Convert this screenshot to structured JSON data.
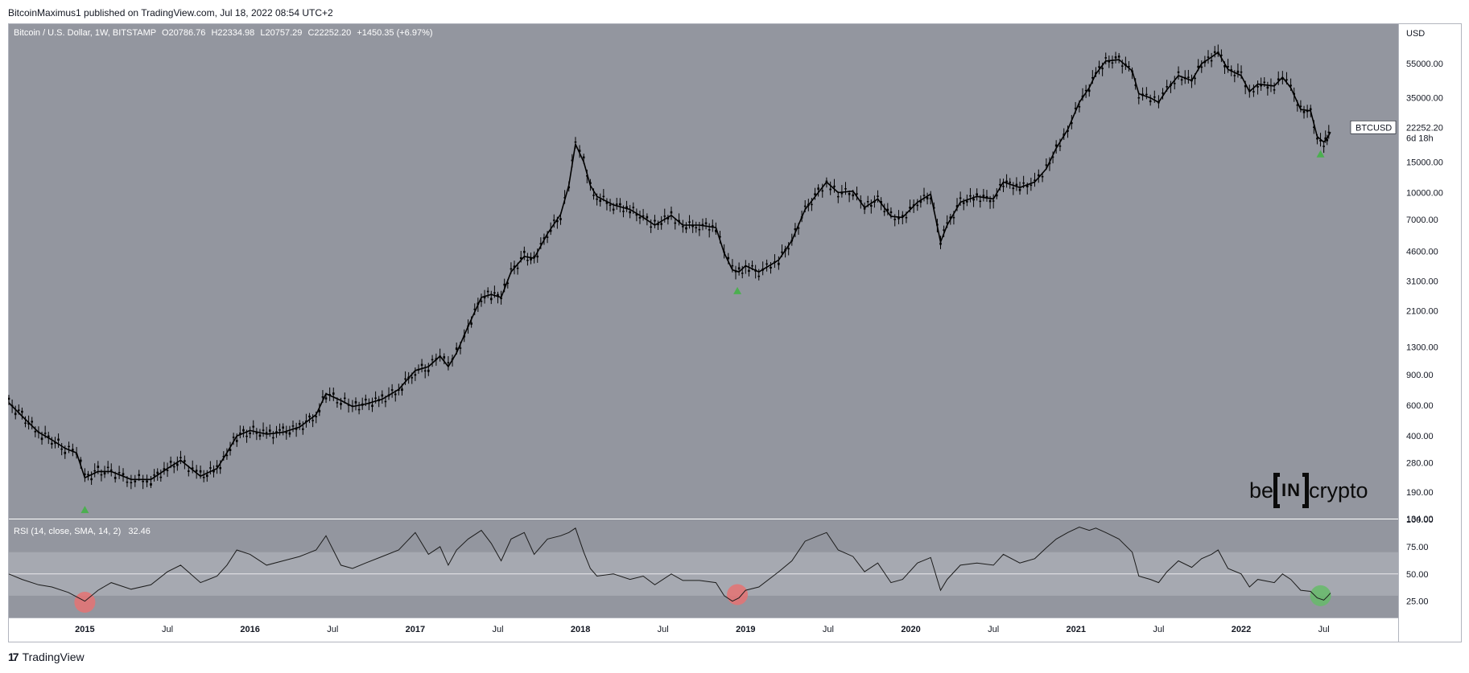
{
  "publisher": "BitcoinMaximus1 published on TradingView.com, Jul 18, 2022 08:54 UTC+2",
  "footer": {
    "brand": "TradingView",
    "logo_mark": "17"
  },
  "watermark": {
    "left": "be",
    "middle": "IN",
    "right": "crypto"
  },
  "colors": {
    "chart_bg": "#93969f",
    "rsi_band": "#a6a9b1",
    "candle": "#000000",
    "arrow_green": "#4caf50",
    "circle_red": "#e57373",
    "circle_green": "#66bb6a"
  },
  "chart_data": [
    {
      "type": "candlestick",
      "title": "Bitcoin / U.S. Dollar, 1W, BITSTAMP",
      "ohlc": {
        "o_label": "O",
        "o": "20786.76",
        "h_label": "H",
        "h": "22334.98",
        "l_label": "L",
        "l": "20757.29",
        "c_label": "C",
        "c": "22252.20",
        "change": "+1450.35 (+6.97%)"
      },
      "y_scale": "log",
      "ylim": [
        134,
        80000
      ],
      "y_unit": "USD",
      "y_ticks": [
        55000,
        35000,
        15000,
        10000,
        7000,
        4600,
        3100,
        2100,
        1300,
        900,
        600,
        400,
        280,
        190,
        134
      ],
      "y_tick_labels": [
        "55000.00",
        "35000.00",
        "15000.00",
        "10000.00",
        "7000.00",
        "4600.00",
        "3100.00",
        "2100.00",
        "1300.00",
        "900.00",
        "600.00",
        "400.00",
        "280.00",
        "190.00",
        "134.00"
      ],
      "x_ticks": [
        "2015",
        "Jul",
        "2016",
        "Jul",
        "2017",
        "Jul",
        "2018",
        "Jul",
        "2019",
        "Jul",
        "2020",
        "Jul",
        "2021",
        "Jul",
        "2022",
        "Jul"
      ],
      "x_tick_years": [
        2015.0,
        2015.5,
        2016.0,
        2016.5,
        2017.0,
        2017.5,
        2018.0,
        2018.5,
        2019.0,
        2019.5,
        2020.0,
        2020.5,
        2021.0,
        2021.5,
        2022.0,
        2022.5
      ],
      "xlim": [
        2014.54,
        2022.95
      ],
      "price_path": [
        [
          2014.54,
          620
        ],
        [
          2014.62,
          520
        ],
        [
          2014.72,
          420
        ],
        [
          2014.8,
          380
        ],
        [
          2014.88,
          340
        ],
        [
          2014.95,
          320
        ],
        [
          2015.0,
          230
        ],
        [
          2015.08,
          250
        ],
        [
          2015.16,
          250
        ],
        [
          2015.28,
          225
        ],
        [
          2015.4,
          225
        ],
        [
          2015.5,
          260
        ],
        [
          2015.58,
          290
        ],
        [
          2015.7,
          235
        ],
        [
          2015.8,
          260
        ],
        [
          2015.86,
          320
        ],
        [
          2015.92,
          400
        ],
        [
          2016.0,
          430
        ],
        [
          2016.1,
          410
        ],
        [
          2016.2,
          420
        ],
        [
          2016.3,
          450
        ],
        [
          2016.4,
          530
        ],
        [
          2016.46,
          700
        ],
        [
          2016.55,
          640
        ],
        [
          2016.62,
          590
        ],
        [
          2016.7,
          610
        ],
        [
          2016.8,
          650
        ],
        [
          2016.9,
          740
        ],
        [
          2017.0,
          950
        ],
        [
          2017.08,
          1000
        ],
        [
          2017.15,
          1150
        ],
        [
          2017.2,
          1000
        ],
        [
          2017.25,
          1200
        ],
        [
          2017.32,
          1700
        ],
        [
          2017.4,
          2500
        ],
        [
          2017.46,
          2600
        ],
        [
          2017.52,
          2500
        ],
        [
          2017.58,
          3500
        ],
        [
          2017.66,
          4300
        ],
        [
          2017.72,
          4200
        ],
        [
          2017.8,
          5800
        ],
        [
          2017.88,
          7500
        ],
        [
          2017.93,
          11000
        ],
        [
          2017.97,
          19000
        ],
        [
          2018.02,
          15000
        ],
        [
          2018.06,
          11000
        ],
        [
          2018.1,
          9500
        ],
        [
          2018.2,
          8500
        ],
        [
          2018.3,
          8000
        ],
        [
          2018.38,
          7200
        ],
        [
          2018.45,
          6500
        ],
        [
          2018.55,
          7400
        ],
        [
          2018.62,
          6500
        ],
        [
          2018.72,
          6500
        ],
        [
          2018.82,
          6300
        ],
        [
          2018.87,
          4500
        ],
        [
          2018.92,
          3600
        ],
        [
          2018.96,
          3500
        ],
        [
          2019.0,
          3800
        ],
        [
          2019.08,
          3500
        ],
        [
          2019.2,
          4100
        ],
        [
          2019.28,
          5300
        ],
        [
          2019.36,
          8000
        ],
        [
          2019.44,
          10000
        ],
        [
          2019.49,
          11500
        ],
        [
          2019.56,
          10000
        ],
        [
          2019.65,
          10200
        ],
        [
          2019.72,
          8200
        ],
        [
          2019.8,
          9200
        ],
        [
          2019.88,
          7300
        ],
        [
          2019.95,
          7200
        ],
        [
          2020.04,
          8800
        ],
        [
          2020.12,
          9800
        ],
        [
          2020.18,
          5200
        ],
        [
          2020.22,
          6500
        ],
        [
          2020.3,
          8800
        ],
        [
          2020.4,
          9500
        ],
        [
          2020.5,
          9200
        ],
        [
          2020.56,
          11500
        ],
        [
          2020.66,
          10700
        ],
        [
          2020.75,
          11500
        ],
        [
          2020.82,
          13700
        ],
        [
          2020.88,
          18000
        ],
        [
          2020.95,
          23000
        ],
        [
          2021.02,
          33000
        ],
        [
          2021.08,
          40000
        ],
        [
          2021.12,
          48000
        ],
        [
          2021.18,
          57000
        ],
        [
          2021.26,
          58000
        ],
        [
          2021.34,
          50000
        ],
        [
          2021.38,
          37000
        ],
        [
          2021.45,
          35000
        ],
        [
          2021.5,
          33000
        ],
        [
          2021.55,
          39000
        ],
        [
          2021.62,
          47000
        ],
        [
          2021.7,
          44000
        ],
        [
          2021.76,
          55000
        ],
        [
          2021.82,
          60000
        ],
        [
          2021.86,
          64000
        ],
        [
          2021.92,
          51000
        ],
        [
          2022.0,
          47000
        ],
        [
          2022.05,
          38000
        ],
        [
          2022.1,
          42000
        ],
        [
          2022.2,
          41000
        ],
        [
          2022.25,
          46000
        ],
        [
          2022.3,
          40000
        ],
        [
          2022.36,
          30000
        ],
        [
          2022.42,
          29500
        ],
        [
          2022.46,
          21000
        ],
        [
          2022.5,
          19500
        ],
        [
          2022.52,
          20500
        ],
        [
          2022.54,
          22252
        ]
      ],
      "arrows_up": [
        {
          "x": 2015.0,
          "y": 152
        },
        {
          "x": 2018.95,
          "y": 2750
        },
        {
          "x": 2022.48,
          "y": 16800
        }
      ],
      "last_price_label": {
        "symbol": "BTCUSD",
        "price": "22252.20",
        "countdown": "6d 18h"
      }
    },
    {
      "type": "line",
      "title": "RSI (14, close, SMA, 14, 2)",
      "last_value": "32.46",
      "ylim": [
        10,
        100
      ],
      "y_ticks": [
        100,
        75,
        50,
        25
      ],
      "y_tick_labels": [
        "100.00",
        "75.00",
        "50.00",
        "25.00"
      ],
      "band": [
        30,
        70
      ],
      "midline": 50,
      "series": [
        [
          2014.54,
          50
        ],
        [
          2014.62,
          45
        ],
        [
          2014.72,
          40
        ],
        [
          2014.8,
          38
        ],
        [
          2014.9,
          33
        ],
        [
          2015.0,
          25
        ],
        [
          2015.08,
          35
        ],
        [
          2015.16,
          42
        ],
        [
          2015.28,
          36
        ],
        [
          2015.4,
          40
        ],
        [
          2015.5,
          52
        ],
        [
          2015.58,
          58
        ],
        [
          2015.7,
          42
        ],
        [
          2015.8,
          48
        ],
        [
          2015.86,
          58
        ],
        [
          2015.92,
          72
        ],
        [
          2016.0,
          68
        ],
        [
          2016.1,
          58
        ],
        [
          2016.2,
          62
        ],
        [
          2016.3,
          66
        ],
        [
          2016.4,
          72
        ],
        [
          2016.46,
          85
        ],
        [
          2016.55,
          58
        ],
        [
          2016.62,
          55
        ],
        [
          2016.7,
          60
        ],
        [
          2016.8,
          66
        ],
        [
          2016.9,
          72
        ],
        [
          2017.0,
          88
        ],
        [
          2017.08,
          68
        ],
        [
          2017.15,
          75
        ],
        [
          2017.2,
          58
        ],
        [
          2017.25,
          72
        ],
        [
          2017.32,
          82
        ],
        [
          2017.4,
          90
        ],
        [
          2017.46,
          78
        ],
        [
          2017.52,
          62
        ],
        [
          2017.58,
          82
        ],
        [
          2017.66,
          88
        ],
        [
          2017.72,
          68
        ],
        [
          2017.8,
          82
        ],
        [
          2017.88,
          85
        ],
        [
          2017.93,
          88
        ],
        [
          2017.97,
          92
        ],
        [
          2018.02,
          70
        ],
        [
          2018.06,
          55
        ],
        [
          2018.1,
          48
        ],
        [
          2018.2,
          50
        ],
        [
          2018.3,
          45
        ],
        [
          2018.38,
          48
        ],
        [
          2018.45,
          40
        ],
        [
          2018.55,
          50
        ],
        [
          2018.62,
          44
        ],
        [
          2018.72,
          44
        ],
        [
          2018.82,
          42
        ],
        [
          2018.87,
          30
        ],
        [
          2018.92,
          25
        ],
        [
          2018.96,
          28
        ],
        [
          2019.0,
          35
        ],
        [
          2019.08,
          38
        ],
        [
          2019.2,
          52
        ],
        [
          2019.28,
          62
        ],
        [
          2019.36,
          80
        ],
        [
          2019.44,
          85
        ],
        [
          2019.49,
          88
        ],
        [
          2019.56,
          72
        ],
        [
          2019.65,
          66
        ],
        [
          2019.72,
          52
        ],
        [
          2019.8,
          60
        ],
        [
          2019.88,
          42
        ],
        [
          2019.95,
          45
        ],
        [
          2020.04,
          60
        ],
        [
          2020.12,
          65
        ],
        [
          2020.18,
          35
        ],
        [
          2020.22,
          45
        ],
        [
          2020.3,
          58
        ],
        [
          2020.4,
          60
        ],
        [
          2020.5,
          58
        ],
        [
          2020.56,
          68
        ],
        [
          2020.66,
          60
        ],
        [
          2020.75,
          64
        ],
        [
          2020.82,
          74
        ],
        [
          2020.88,
          82
        ],
        [
          2020.95,
          88
        ],
        [
          2021.02,
          93
        ],
        [
          2021.08,
          90
        ],
        [
          2021.12,
          92
        ],
        [
          2021.18,
          88
        ],
        [
          2021.26,
          82
        ],
        [
          2021.34,
          70
        ],
        [
          2021.38,
          48
        ],
        [
          2021.45,
          45
        ],
        [
          2021.5,
          42
        ],
        [
          2021.55,
          52
        ],
        [
          2021.62,
          62
        ],
        [
          2021.7,
          56
        ],
        [
          2021.76,
          64
        ],
        [
          2021.82,
          68
        ],
        [
          2021.86,
          72
        ],
        [
          2021.92,
          55
        ],
        [
          2022.0,
          50
        ],
        [
          2022.05,
          38
        ],
        [
          2022.1,
          45
        ],
        [
          2022.2,
          42
        ],
        [
          2022.25,
          50
        ],
        [
          2022.3,
          45
        ],
        [
          2022.36,
          35
        ],
        [
          2022.42,
          34
        ],
        [
          2022.46,
          28
        ],
        [
          2022.5,
          26
        ],
        [
          2022.52,
          29
        ],
        [
          2022.54,
          32.46
        ]
      ],
      "circles": [
        {
          "x": 2015.0,
          "y": 24,
          "color": "red"
        },
        {
          "x": 2018.95,
          "y": 31,
          "color": "red"
        },
        {
          "x": 2022.48,
          "y": 30,
          "color": "green"
        }
      ]
    }
  ]
}
